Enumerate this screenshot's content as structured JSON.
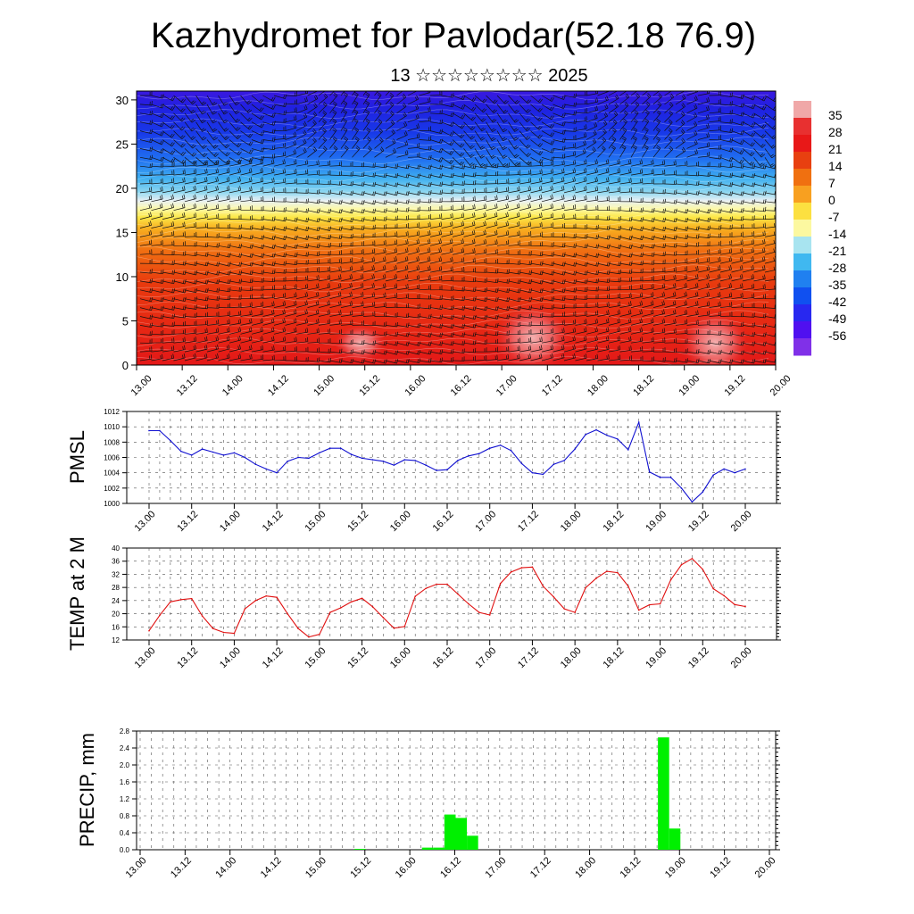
{
  "title": "Kazhydromet for Pavlodar(52.18 76.9)",
  "subtitle": "13 ☆☆☆☆☆☆☆☆ 2025",
  "colors": {
    "pmsl_line": "#1010d0",
    "temp_line": "#e01010",
    "precip_bar": "#00f000",
    "grid": "#555555"
  },
  "chart_data": [
    {
      "type": "heatmap",
      "name": "vertical-profile",
      "title": "",
      "xlabel": "",
      "ylabel": "",
      "xticks": [
        "13.00",
        "13.12",
        "14.00",
        "14.12",
        "15.00",
        "15.12",
        "16.00",
        "16.12",
        "17.00",
        "17.12",
        "18.00",
        "18.12",
        "19.00",
        "19.12",
        "20.00"
      ],
      "yticks": [
        "0",
        "5",
        "10",
        "15",
        "20",
        "25",
        "30"
      ],
      "ylim": [
        0,
        31
      ],
      "colorbar_labels": [
        "35",
        "28",
        "21",
        "14",
        "7",
        "0",
        "-7",
        "-14",
        "-21",
        "-28",
        "-35",
        "-42",
        "-49",
        "-56"
      ],
      "colorbar_colors": [
        "#f0a8a8",
        "#e83030",
        "#e81818",
        "#e84010",
        "#f07010",
        "#f8a020",
        "#fce040",
        "#fcf8a0",
        "#a8e4f0",
        "#40b8f0",
        "#2080f0",
        "#1050f0",
        "#2828f0",
        "#5010f0",
        "#8030e8"
      ],
      "wind_barbs": true
    },
    {
      "type": "line",
      "name": "pmsl",
      "ylabel": "PMSL",
      "ylim": [
        1000,
        1012
      ],
      "yticks": [
        "1000",
        "1002",
        "1004",
        "1006",
        "1008",
        "1010",
        "1012"
      ],
      "xticks": [
        "13.00",
        "13.12",
        "14.00",
        "14.12",
        "15.00",
        "15.12",
        "16.00",
        "16.12",
        "17.00",
        "17.12",
        "18.00",
        "18.12",
        "19.00",
        "19.12",
        "20.00"
      ],
      "x": [
        0,
        3,
        6,
        9,
        12,
        15,
        18,
        21,
        24,
        27,
        30,
        33,
        36,
        39,
        42,
        45,
        48,
        51,
        54,
        57,
        60,
        63,
        66,
        69,
        72,
        75,
        78,
        81,
        84,
        87,
        90,
        93,
        96,
        99,
        102,
        105,
        108,
        111,
        114,
        117,
        120,
        123,
        126,
        129,
        132,
        135,
        138,
        141,
        144,
        147,
        150,
        153,
        156,
        159,
        162,
        165,
        168
      ],
      "values": [
        1009.5,
        1009.5,
        1008.2,
        1006.8,
        1006.3,
        1007.1,
        1006.7,
        1006.3,
        1006.6,
        1006.0,
        1005.1,
        1004.5,
        1004.0,
        1005.5,
        1006.0,
        1005.9,
        1006.6,
        1007.2,
        1007.2,
        1006.4,
        1005.9,
        1005.7,
        1005.5,
        1005.0,
        1005.7,
        1005.6,
        1005.0,
        1004.3,
        1004.4,
        1005.6,
        1006.2,
        1006.5,
        1007.2,
        1007.6,
        1006.9,
        1005.2,
        1004.0,
        1003.8,
        1005.1,
        1005.6,
        1007.1,
        1009.0,
        1009.6,
        1008.9,
        1008.4,
        1007.0,
        1010.6,
        1004.1,
        1003.4,
        1003.4,
        1002.0,
        1000.2,
        1001.5,
        1003.7,
        1004.5,
        1004.0,
        1004.5
      ]
    },
    {
      "type": "line",
      "name": "temp",
      "ylabel": "TEMP at 2 M",
      "ylim": [
        12,
        40
      ],
      "yticks": [
        "12",
        "16",
        "20",
        "24",
        "28",
        "32",
        "36",
        "40"
      ],
      "xticks": [
        "13.00",
        "13.12",
        "14.00",
        "14.12",
        "15.00",
        "15.12",
        "16.00",
        "16.12",
        "17.00",
        "17.12",
        "18.00",
        "18.12",
        "19.00",
        "19.12",
        "20.00"
      ],
      "x": [
        0,
        3,
        6,
        9,
        12,
        15,
        18,
        21,
        24,
        27,
        30,
        33,
        36,
        39,
        42,
        45,
        48,
        51,
        54,
        57,
        60,
        63,
        66,
        69,
        72,
        75,
        78,
        81,
        84,
        87,
        90,
        93,
        96,
        99,
        102,
        105,
        108,
        111,
        114,
        117,
        120,
        123,
        126,
        129,
        132,
        135,
        138,
        141,
        144,
        147,
        150,
        153,
        156,
        159,
        162,
        165,
        168
      ],
      "values": [
        14.8,
        19.5,
        23.6,
        24.3,
        24.6,
        19.3,
        15.5,
        14.3,
        14.0,
        21.5,
        24.0,
        25.4,
        25.0,
        20.0,
        15.5,
        12.9,
        13.7,
        20.4,
        21.8,
        23.6,
        24.7,
        22.1,
        18.8,
        15.6,
        16.1,
        25.3,
        27.7,
        29.0,
        29.0,
        26.0,
        23.0,
        20.4,
        19.6,
        29.2,
        32.7,
        34.0,
        34.2,
        28.4,
        25.1,
        21.5,
        20.4,
        27.9,
        30.8,
        32.9,
        32.5,
        28.4,
        21.1,
        22.7,
        23.0,
        30.3,
        34.9,
        36.8,
        33.5,
        27.6,
        25.5,
        22.8,
        22.2
      ]
    },
    {
      "type": "bar",
      "name": "precip",
      "ylabel": "PRECIP, mm",
      "ylim": [
        0,
        2.8
      ],
      "yticks": [
        "0.0",
        "0.4",
        "0.8",
        "1.2",
        "1.6",
        "2.0",
        "2.4",
        "2.8"
      ],
      "xticks": [
        "13.00",
        "13.12",
        "14.00",
        "14.12",
        "15.00",
        "15.12",
        "16.00",
        "16.12",
        "17.00",
        "17.12",
        "18.00",
        "18.12",
        "19.00",
        "19.12",
        "20.00"
      ],
      "bar_width_hours": 3,
      "x": [
        57,
        75,
        78,
        81,
        84,
        87,
        138,
        141
      ],
      "values": [
        0.02,
        0.05,
        0.05,
        0.83,
        0.75,
        0.33,
        2.65,
        0.5
      ]
    }
  ]
}
